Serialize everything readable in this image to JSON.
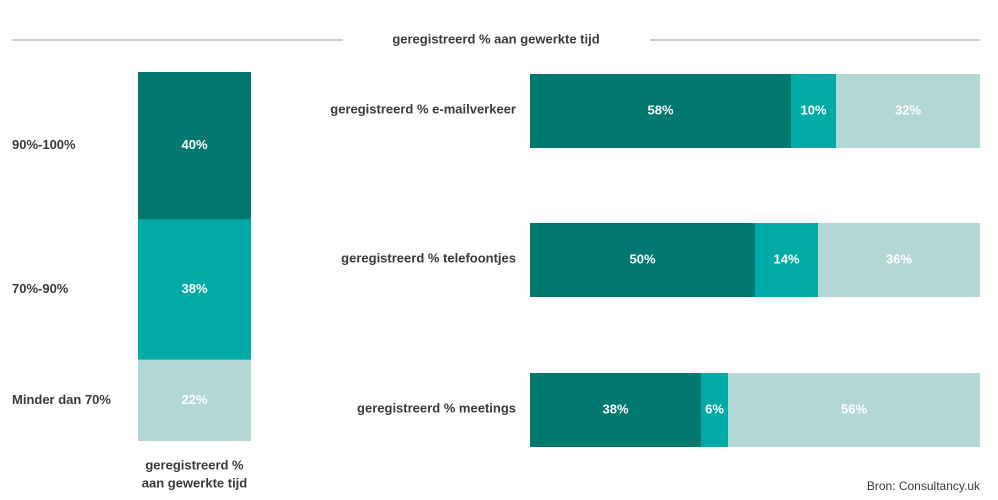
{
  "title": "geregistreerd % aan gewerkte tijd",
  "source": "Bron: Consultancy.uk",
  "chart_data": [
    {
      "type": "stacked-column",
      "xlabel_lines": [
        "geregistreerd %",
        "aan gewerkte tijd"
      ],
      "ylim": [
        0,
        100
      ],
      "series": [
        {
          "name": "90%-100%",
          "color": "#007870",
          "values": [
            40
          ],
          "value_labels": [
            "40%"
          ]
        },
        {
          "name": "70%-90%",
          "color": "#00aaa6",
          "values": [
            38
          ],
          "value_labels": [
            "38%"
          ]
        },
        {
          "name": "Minder dan 70%",
          "color": "#b3d7d5",
          "values": [
            22
          ],
          "value_labels": [
            "22%"
          ]
        }
      ]
    },
    {
      "type": "stacked-bar",
      "xlim": [
        0,
        100
      ],
      "categories": [
        "geregistreerd % e-mailverkeer",
        "geregistreerd % telefoontjes",
        "geregistreerd % meetings"
      ],
      "series": [
        {
          "color": "#007870",
          "values": [
            58,
            50,
            38
          ],
          "value_labels": [
            "58%",
            "50%",
            "38%"
          ]
        },
        {
          "color": "#00aaa6",
          "values": [
            10,
            14,
            6
          ],
          "value_labels": [
            "10%",
            "14%",
            "6%"
          ]
        },
        {
          "color": "#b3d7d5",
          "values": [
            32,
            36,
            56
          ],
          "value_labels": [
            "32%",
            "36%",
            "56%"
          ]
        }
      ]
    }
  ]
}
